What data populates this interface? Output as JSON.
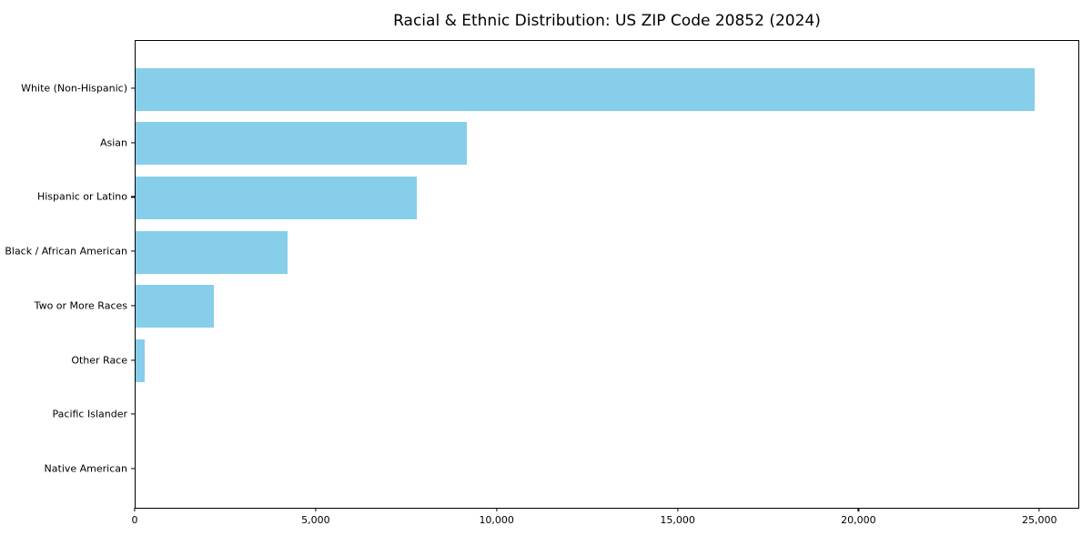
{
  "chart_data": {
    "type": "bar",
    "orientation": "horizontal",
    "title": "Racial & Ethnic Distribution: US ZIP Code 20852 (2024)",
    "categories": [
      "White (Non-Hispanic)",
      "Asian",
      "Hispanic or Latino",
      "Black / African American",
      "Two or More Races",
      "Other Race",
      "Pacific Islander",
      "Native American"
    ],
    "values": [
      24850,
      9160,
      7760,
      4210,
      2150,
      250,
      0,
      0
    ],
    "title_text": "Racial & Ethnic Distribution: US ZIP Code 20852 (2024)",
    "xlabel": "",
    "ylabel": "",
    "xlim": [
      0,
      26100
    ],
    "x_ticks": [
      0,
      5000,
      10000,
      15000,
      20000,
      25000
    ],
    "x_tick_labels": [
      "0",
      "5,000",
      "10,000",
      "15,000",
      "20,000",
      "25,000"
    ],
    "bar_color": "#87CEEB",
    "axis_color": "#000000",
    "grid": false,
    "legend": null
  }
}
